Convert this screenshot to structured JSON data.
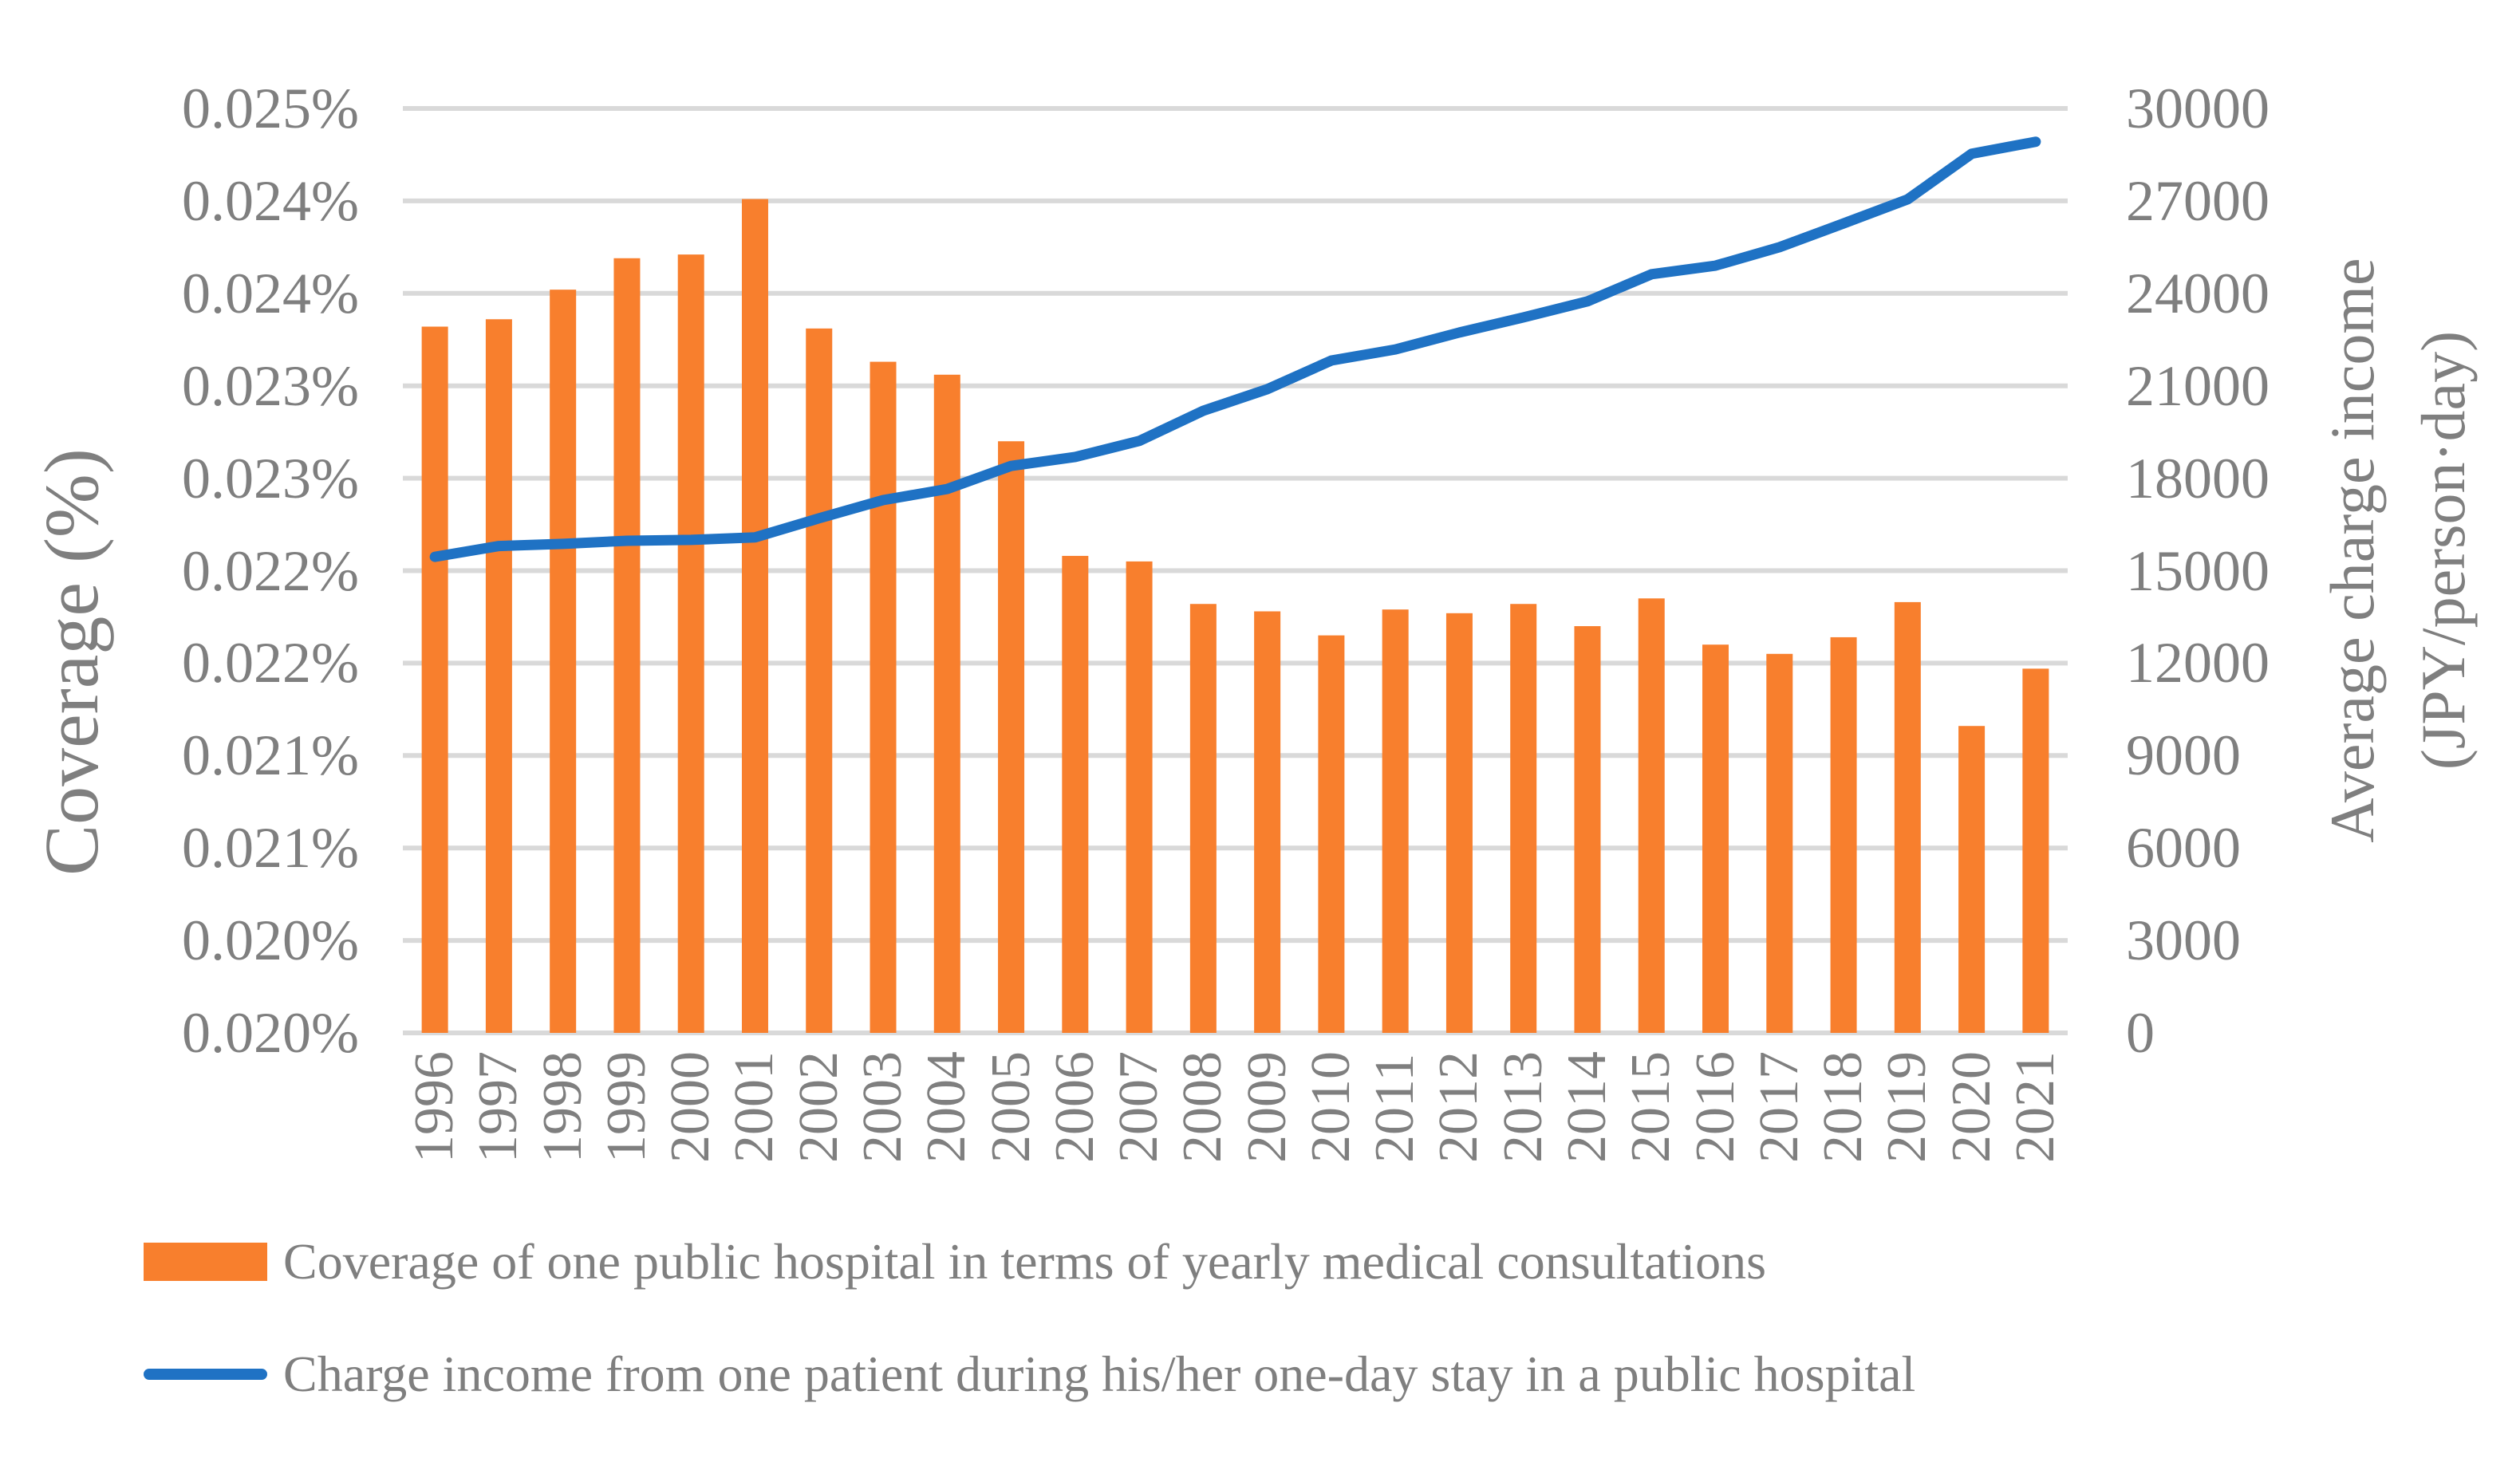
{
  "chart_data": {
    "type": "combo-bar-line",
    "categories": [
      "1996",
      "1997",
      "1998",
      "1999",
      "2000",
      "2001",
      "2002",
      "2003",
      "2004",
      "2005",
      "2006",
      "2007",
      "2008",
      "2009",
      "2010",
      "2011",
      "2012",
      "2013",
      "2014",
      "2015",
      "2016",
      "2017",
      "2018",
      "2019",
      "2020",
      "2021"
    ],
    "series": [
      {
        "name": "Coverage of one public hospital in terms of yearly medical consultations",
        "type": "bar",
        "axis": "left",
        "unit": "%",
        "values": [
          0.02382,
          0.02386,
          0.02402,
          0.02419,
          0.02421,
          0.02451,
          0.02381,
          0.02363,
          0.02356,
          0.0232,
          0.02258,
          0.02255,
          0.02232,
          0.02228,
          0.02215,
          0.02229,
          0.02227,
          0.02232,
          0.0222,
          0.02235,
          0.0221,
          0.02205,
          0.02214,
          0.02233,
          0.02166,
          0.02197
        ]
      },
      {
        "name": "Charge income from one patient during his/her one-day stay in a public hospital",
        "type": "line",
        "axis": "right",
        "unit": "JPY/person·day",
        "values": [
          15450,
          15800,
          15870,
          15970,
          16000,
          16080,
          16700,
          17290,
          17650,
          18400,
          18690,
          19210,
          20190,
          20890,
          21820,
          22180,
          22730,
          23220,
          23740,
          24620,
          24900,
          25500,
          26270,
          27050,
          28530,
          28920
        ]
      }
    ],
    "left_axis": {
      "title": "Coverage (%)",
      "min": 0.02,
      "max": 0.025,
      "step": 0.0005,
      "tick_labels": [
        "0.025%",
        "0.024%",
        "0.024%",
        "0.023%",
        "0.023%",
        "0.022%",
        "0.022%",
        "0.021%",
        "0.021%",
        "0.020%",
        "0.020%"
      ]
    },
    "right_axis": {
      "title_line1": "Average charge income",
      "title_line2": "(JPY/person·day)",
      "min": 0,
      "max": 30000,
      "step": 3000,
      "tick_labels": [
        "30000",
        "27000",
        "24000",
        "21000",
        "18000",
        "15000",
        "12000",
        "9000",
        "6000",
        "3000",
        "0"
      ]
    },
    "grid": true,
    "legend_position": "bottom"
  },
  "legend": {
    "bar_label": "Coverage of one public hospital in terms of yearly medical consultations",
    "line_label": "Charge income from one patient during his/her one-day stay in a public hospital"
  },
  "colors": {
    "bar": "#F87F2D",
    "line": "#1F72C4",
    "gridline": "#D9D9D9",
    "text": "#7F7F7F"
  }
}
